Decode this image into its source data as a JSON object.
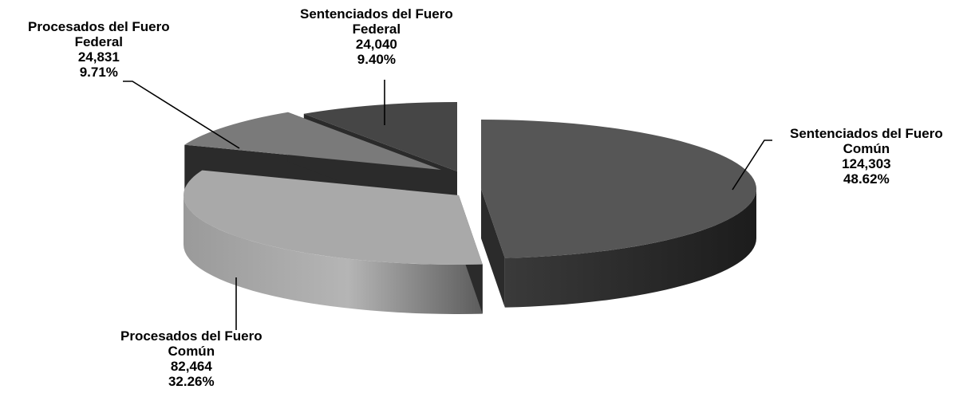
{
  "chart_data": {
    "type": "pie",
    "title": "",
    "slices": [
      {
        "label_lines": [
          "Sentenciados del Fuero",
          "Común"
        ],
        "value": "124,303",
        "percent": "48.62%",
        "value_num": 124303,
        "percent_num": 48.62,
        "color": "#565656"
      },
      {
        "label_lines": [
          "Procesados del Fuero",
          "Común"
        ],
        "value": "82,464",
        "percent": "32.26%",
        "value_num": 82464,
        "percent_num": 32.26,
        "color": "#a9a9a9"
      },
      {
        "label_lines": [
          "Procesados del Fuero",
          "Federal"
        ],
        "value": "24,831",
        "percent": "9.71%",
        "value_num": 24831,
        "percent_num": 9.71,
        "color": "#7a7a7a"
      },
      {
        "label_lines": [
          "Sentenciados del Fuero",
          "Federal"
        ],
        "value": "24,040",
        "percent": "9.40%",
        "value_num": 24040,
        "percent_num": 9.4,
        "color": "#464646"
      }
    ]
  }
}
